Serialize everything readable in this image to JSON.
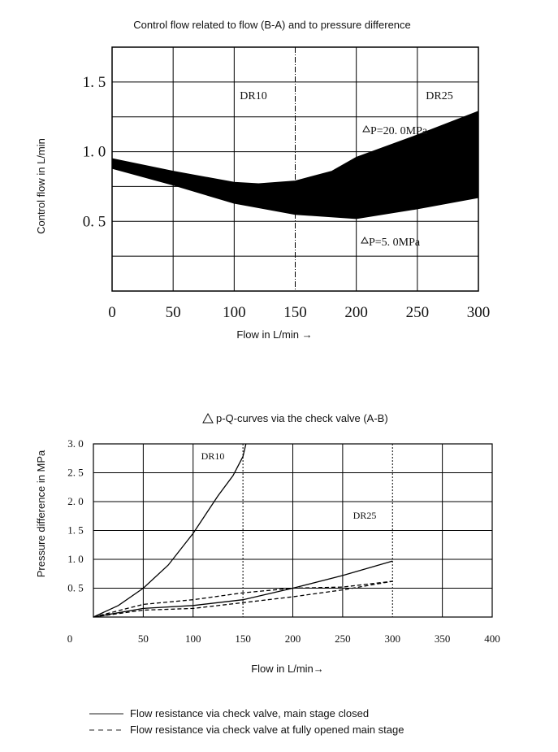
{
  "chart_data": [
    {
      "type": "area",
      "title": "Control flow related to flow (B-A) and to pressure difference",
      "xlabel": "Flow in L/min →",
      "ylabel": "Control flow in L/min",
      "xlim": [
        0,
        300
      ],
      "ylim": [
        0,
        1.75
      ],
      "xticks": [
        "0",
        "50",
        "100",
        "150",
        "200",
        "250",
        "300"
      ],
      "yticks": [
        "0. 5",
        "1. 0",
        "1. 5"
      ],
      "grid": true,
      "annotations": [
        "DR10",
        "DR25",
        "P=20. 0MPa",
        "P=5. 0MPa"
      ],
      "series": [
        {
          "name": "P=20. 0MPa",
          "x": [
            0,
            50,
            100,
            120,
            150,
            180,
            200,
            250,
            300
          ],
          "y": [
            0.95,
            0.86,
            0.78,
            0.77,
            0.79,
            0.86,
            0.96,
            1.12,
            1.29
          ]
        },
        {
          "name": "P=5. 0MPa",
          "x": [
            0,
            50,
            100,
            150,
            200,
            250,
            300
          ],
          "y": [
            0.88,
            0.76,
            0.63,
            0.55,
            0.52,
            0.59,
            0.67
          ]
        }
      ]
    },
    {
      "type": "line",
      "title": "p-Q-curves via the check valve (A-B)",
      "xlabel": "Flow in L/min→",
      "ylabel": "Pressure difference in MPa",
      "xlim": [
        0,
        400
      ],
      "ylim": [
        0,
        3.0
      ],
      "xticks": [
        "0",
        "50",
        "100",
        "150",
        "200",
        "250",
        "300",
        "350",
        "400"
      ],
      "yticks": [
        "0. 5",
        "1. 0",
        "1. 5",
        "2. 0",
        "2. 5",
        "3. 0"
      ],
      "grid": true,
      "annotations": [
        "DR10",
        "DR25"
      ],
      "series": [
        {
          "group": "DR10",
          "style": "solid",
          "x": [
            0,
            25,
            50,
            75,
            100,
            125,
            140,
            150,
            153
          ],
          "y": [
            0,
            0.2,
            0.5,
            0.9,
            1.45,
            2.1,
            2.45,
            2.78,
            3.0
          ]
        },
        {
          "group": "DR25",
          "style": "solid",
          "x": [
            0,
            50,
            100,
            150,
            200,
            250,
            300
          ],
          "y": [
            0,
            0.15,
            0.2,
            0.3,
            0.5,
            0.72,
            0.97
          ]
        },
        {
          "group": "DR25",
          "style": "dashed",
          "x": [
            0,
            50,
            100,
            150,
            200,
            250,
            300
          ],
          "y": [
            0,
            0.22,
            0.3,
            0.42,
            0.5,
            0.52,
            0.62
          ]
        },
        {
          "group": "DR25",
          "style": "dashed",
          "x": [
            0,
            50,
            100,
            150,
            200,
            250,
            300
          ],
          "y": [
            0,
            0.12,
            0.15,
            0.25,
            0.35,
            0.47,
            0.62
          ]
        }
      ],
      "legend": [
        {
          "style": "solid",
          "label": "Flow resistance via check valve, main stage closed"
        },
        {
          "style": "dashed",
          "label": "Flow resistance via check valve at fully opened main stage"
        }
      ]
    }
  ]
}
